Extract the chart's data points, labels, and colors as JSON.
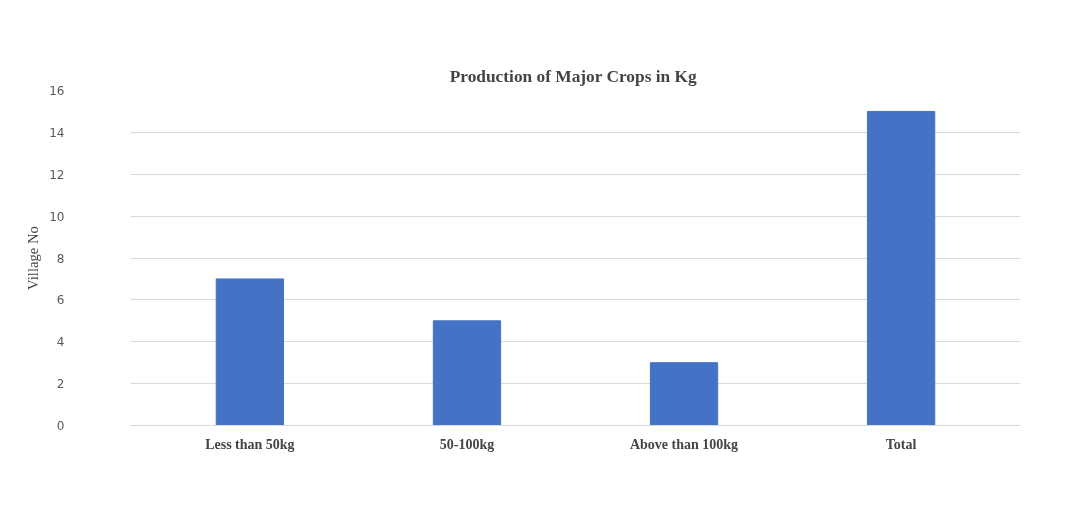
{
  "chart_data": {
    "type": "bar",
    "title": "Production of  Major Crops in Kg",
    "ylabel": "Village No",
    "categories": [
      "Less than 50kg",
      "50-100kg",
      "Above than 100kg",
      "Total"
    ],
    "values": [
      7,
      5,
      3,
      15
    ],
    "color": "#4472c4",
    "ylim": [
      0,
      16
    ],
    "yticks": [
      0,
      2,
      4,
      6,
      8,
      10,
      12,
      14,
      16
    ],
    "grid": "y"
  }
}
